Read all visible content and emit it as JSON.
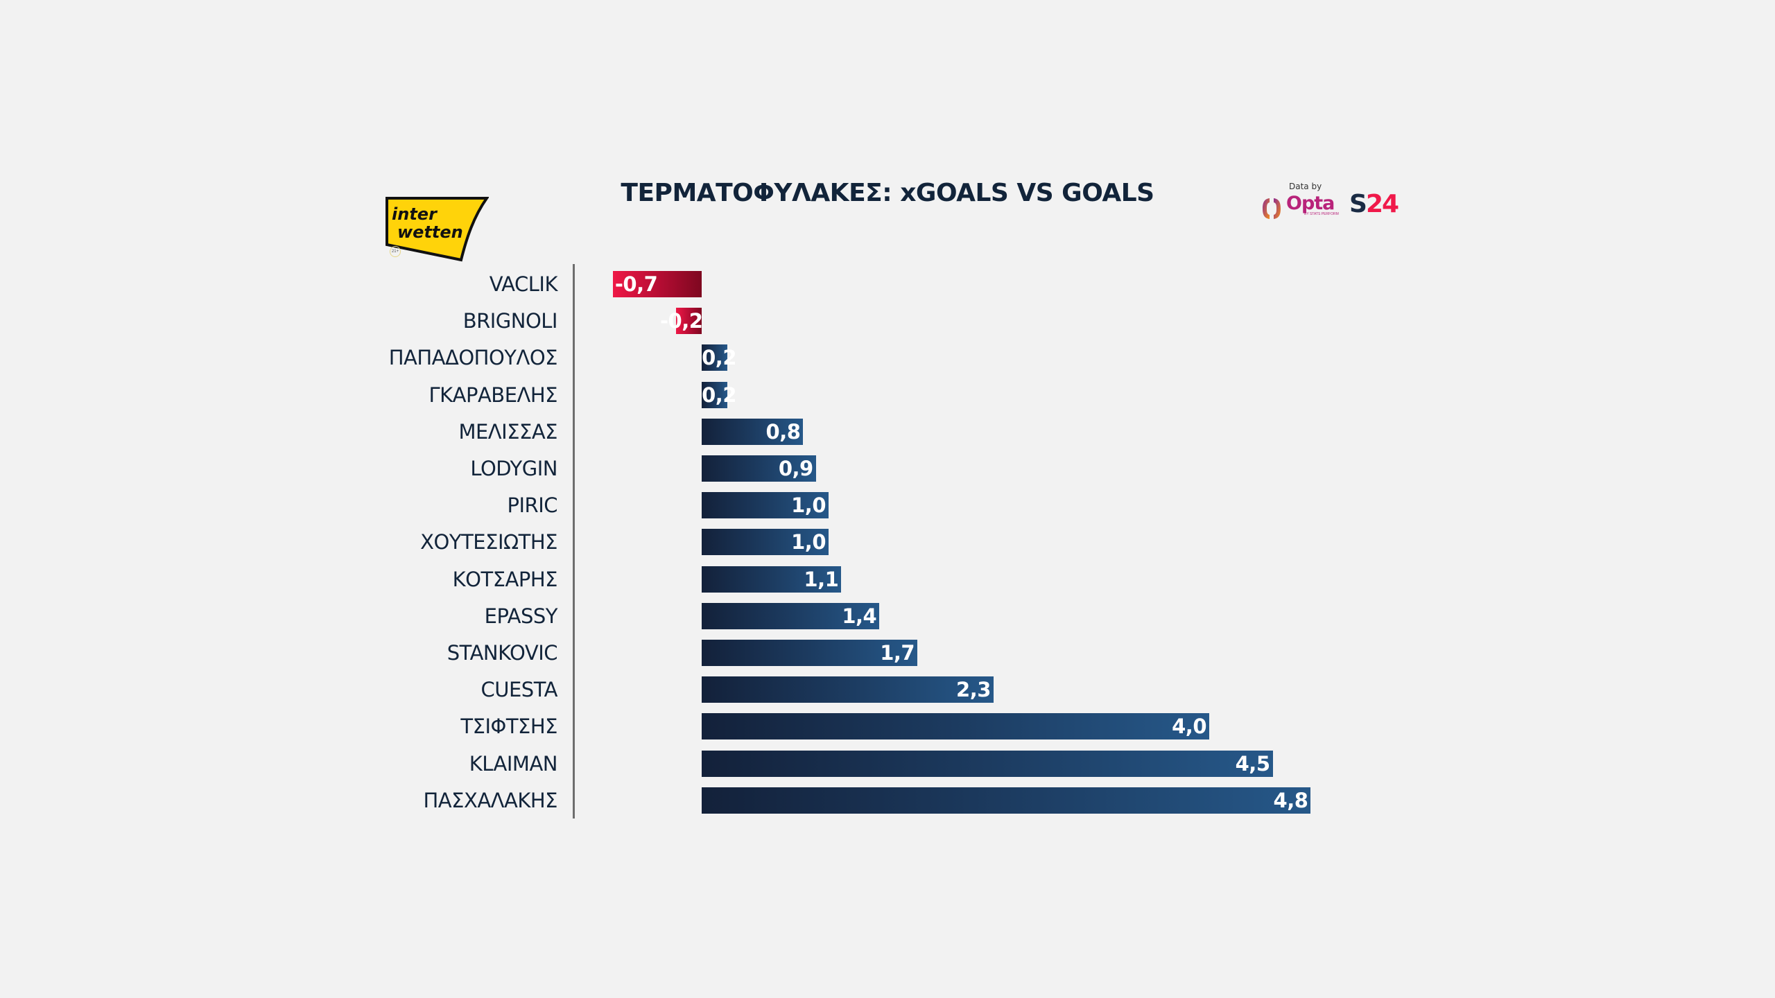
{
  "header": {
    "title_bold": "ΤΕΡΜΑΤΟΦΥΛΑΚΕΣ:",
    "title_rest": " xGOALS VS GOALS",
    "sponsor_logo_line1": "inter",
    "sponsor_logo_line2": "wetten",
    "age_badge": "21+",
    "data_by_label": "Data by",
    "opta_label": "Opta",
    "opta_sub": "BY STATS PERFORM",
    "s24_s": "S",
    "s24_num": "24"
  },
  "colors": {
    "positive_dark": "#13213a",
    "positive_light": "#265889",
    "negative_light": "#ee1846",
    "negative_dark": "#7e0820",
    "text": "#12243a",
    "background": "#f2f2f2"
  },
  "chart_data": {
    "type": "bar",
    "orientation": "horizontal",
    "title": "ΤΕΡΜΑΤΟΦΥΛΑΚΕΣ: xGOALS VS GOALS",
    "xlabel": "",
    "ylabel": "",
    "grid": false,
    "categories": [
      "VACLIK",
      "BRIGNOLI",
      "ΠΑΠΑΔΟΠΟΥΛΟΣ",
      "ΓΚΑΡΑΒΕΛΗΣ",
      "ΜΕΛΙΣΣΑΣ",
      "LODYGIN",
      "PIRIC",
      "ΧΟΥΤΕΣΙΩΤΗΣ",
      "ΚΟΤΣΑΡΗΣ",
      "EPASSY",
      "STANKOVIC",
      "CUESTA",
      "ΤΣΙΦΤΣΗΣ",
      "KLAIMAN",
      "ΠΑΣΧΑΛΑΚΗΣ"
    ],
    "values": [
      -0.7,
      -0.2,
      0.2,
      0.2,
      0.8,
      0.9,
      1.0,
      1.0,
      1.1,
      1.4,
      1.7,
      2.3,
      4.0,
      4.5,
      4.8
    ],
    "value_labels": [
      "-0,7",
      "-0,2",
      "0,2",
      "0,2",
      "0,8",
      "0,9",
      "1,0",
      "1,0",
      "1,1",
      "1,4",
      "1,7",
      "2,3",
      "4,0",
      "4,5",
      "4,8"
    ],
    "xlim": [
      -1.5,
      4.8
    ]
  }
}
